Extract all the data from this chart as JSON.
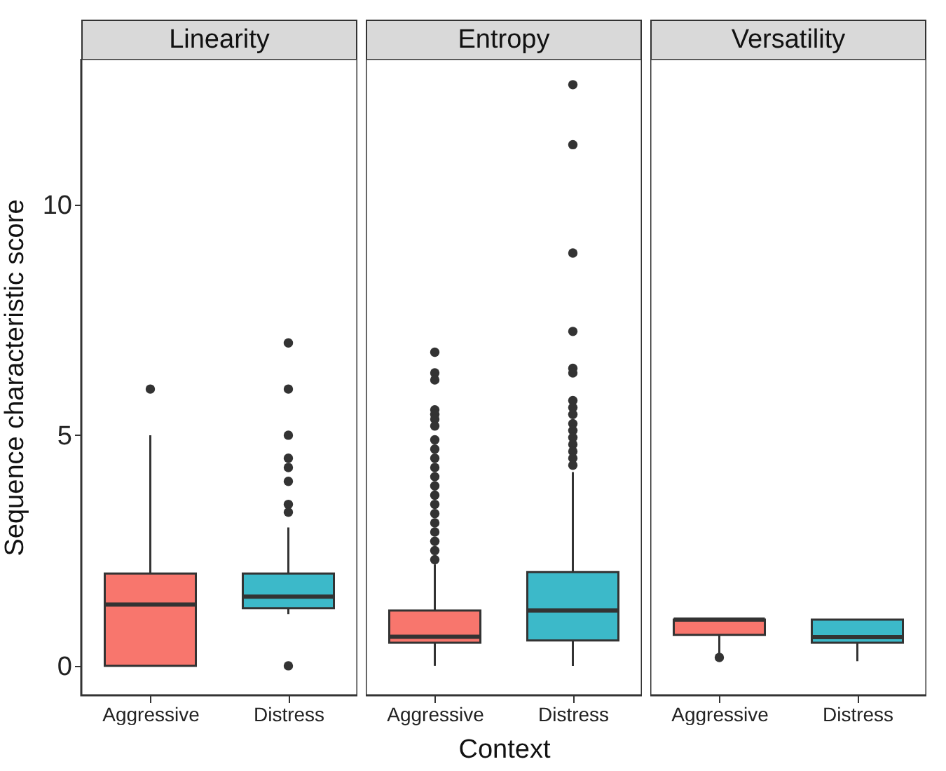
{
  "chart_data": [
    {
      "type": "box",
      "title": "Linearity",
      "ylabel": "Sequence characteristic score",
      "categories": [
        "Aggressive",
        "Distress"
      ],
      "colors": [
        "#f8766d",
        "#3cb9c9"
      ],
      "ylim": [
        -0.64,
        13.16
      ],
      "yticks": [
        0,
        5,
        10
      ],
      "boxes": [
        {
          "low": 0,
          "q1": 0,
          "median": 1.33,
          "q3": 2.0,
          "high": 5.0,
          "outliers": [
            6.0
          ]
        },
        {
          "low": 1.12,
          "q1": 1.25,
          "median": 1.5,
          "q3": 2.0,
          "high": 3.0,
          "outliers": [
            7.0,
            6.0,
            5.0,
            4.5,
            4.3,
            4.0,
            3.5,
            3.33,
            0
          ]
        }
      ]
    },
    {
      "type": "box",
      "title": "Entropy",
      "xlabel": "Context",
      "categories": [
        "Aggressive",
        "Distress"
      ],
      "colors": [
        "#f8766d",
        "#3cb9c9"
      ],
      "ylim": [
        -0.64,
        13.16
      ],
      "yticks": [
        0,
        5,
        10
      ],
      "tick_labels": "x",
      "boxes": [
        {
          "low": 0,
          "q1": 0.5,
          "median": 0.63,
          "q3": 1.2,
          "high": 2.2,
          "outliers": [
            6.8,
            6.35,
            6.2,
            5.55,
            5.45,
            5.35,
            5.2,
            4.9,
            4.7,
            4.5,
            4.3,
            4.1,
            3.9,
            3.7,
            3.5,
            3.3,
            3.1,
            2.9,
            2.7,
            2.5,
            2.3
          ]
        },
        {
          "low": 0,
          "q1": 0.55,
          "median": 1.2,
          "q3": 2.03,
          "high": 4.2,
          "outliers": [
            12.6,
            11.3,
            8.95,
            7.25,
            6.45,
            6.35,
            5.75,
            5.6,
            5.45,
            5.25,
            5.1,
            4.95,
            4.8,
            4.65,
            4.5,
            4.35
          ]
        }
      ]
    },
    {
      "type": "box",
      "title": "Versatility",
      "categories": [
        "Aggressive",
        "Distress"
      ],
      "colors": [
        "#f8766d",
        "#3cb9c9"
      ],
      "ylim": [
        -0.64,
        13.16
      ],
      "yticks": [
        0,
        5,
        10
      ],
      "tick_labels": "x",
      "boxes": [
        {
          "low": 0.18,
          "q1": 0.67,
          "median": 1.0,
          "q3": 1.0,
          "high": 1.0,
          "outliers": [
            0.18
          ]
        },
        {
          "low": 0.1,
          "q1": 0.5,
          "median": 0.62,
          "q3": 1.0,
          "high": 1.0
        }
      ]
    }
  ]
}
